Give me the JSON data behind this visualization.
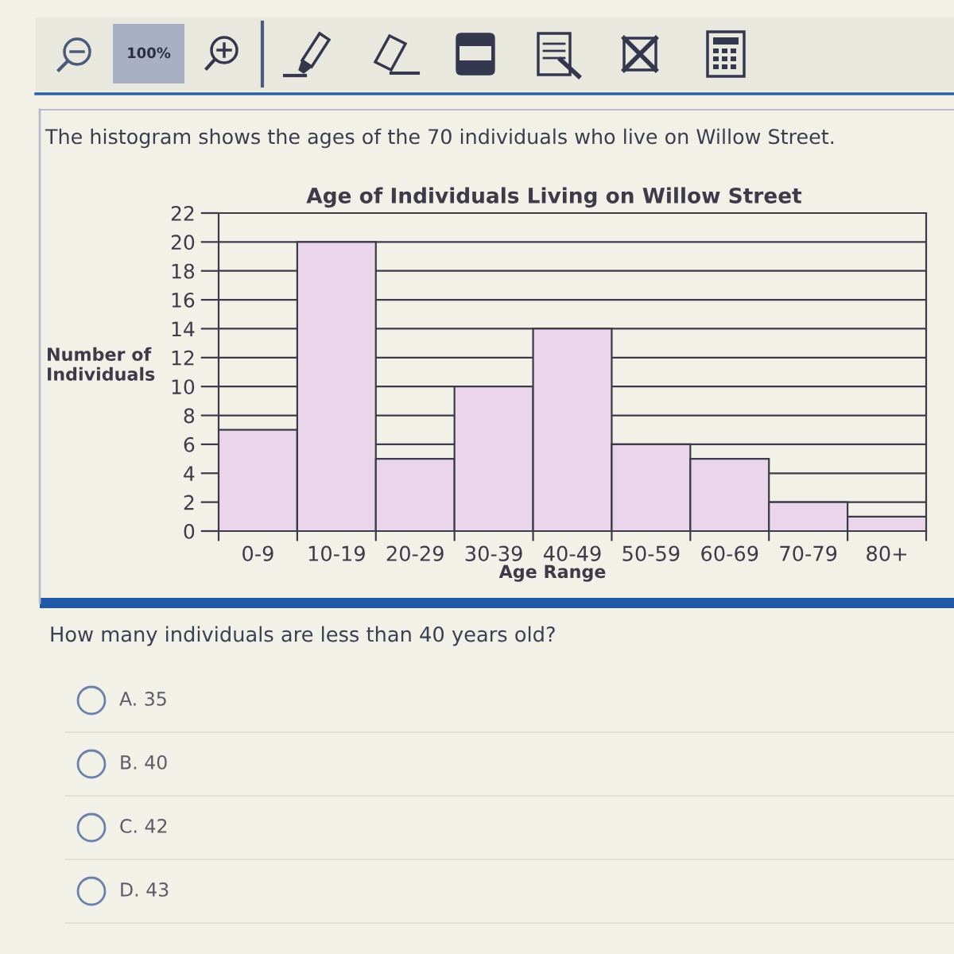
{
  "chart_data": {
    "type": "bar",
    "title": "Age of Individuals Living on Willow Street",
    "subtitle": "The histogram shows the ages of the 70 individuals who live on Willow Street.",
    "xlabel": "Age Range",
    "ylabel": "Number of\nIndividuals",
    "categories": [
      "0-9",
      "10-19",
      "20-29",
      "30-39",
      "40-49",
      "50-59",
      "60-69",
      "70-79",
      "80+"
    ],
    "values": [
      7,
      20,
      5,
      10,
      14,
      6,
      5,
      2,
      1
    ],
    "color": "#ebd5eb",
    "ylim": [
      0,
      22
    ],
    "yticks": [
      0,
      2,
      4,
      6,
      8,
      10,
      12,
      14,
      16,
      18,
      20,
      22
    ],
    "grid": "y",
    "annotations": [
      "100%",
      "How many individuals are less than 40 years old?",
      "A. 35",
      "B. 40",
      "C. 42",
      "D. 43"
    ]
  }
}
